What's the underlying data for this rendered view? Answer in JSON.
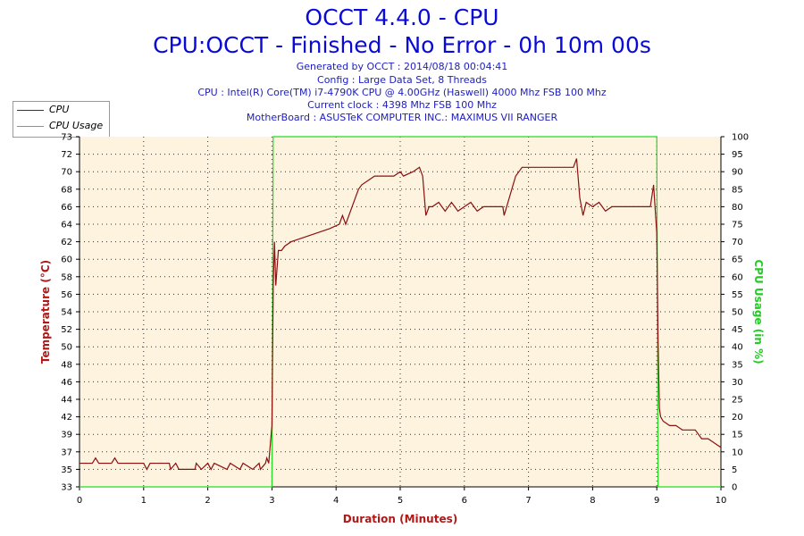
{
  "header": {
    "title": "OCCT 4.4.0 - CPU",
    "subtitle": "CPU:OCCT - Finished - No Error - 0h 10m 00s",
    "info_lines": [
      "Generated by OCCT : 2014/08/18 00:04:41",
      "Config : Large Data Set, 8 Threads",
      "CPU : Intel(R) Core(TM) i7-4790K CPU @ 4.00GHz (Haswell) 4000 Mhz FSB 100 Mhz",
      "Current clock : 4398 Mhz FSB 100 Mhz",
      "MotherBoard : ASUSTeK COMPUTER INC.: MAXIMUS VII RANGER"
    ]
  },
  "colors": {
    "cpu": "#8b1010",
    "usage": "#22dd22",
    "plot_bg": "#fdf3df",
    "title": "#0a0ad8",
    "info": "#2020c0",
    "ylabel_left": "#b01818",
    "ylabel_right": "#22cc22",
    "xlabel": "#b01818"
  },
  "chart_data": {
    "type": "line",
    "title": "OCCT 4.4.0 - CPU",
    "xlabel": "Duration (Minutes)",
    "ylabel": "Temperature (°C)",
    "y2label": "CPU Usage (in %)",
    "xlim": [
      0,
      10
    ],
    "ylim": [
      33,
      73
    ],
    "y2lim": [
      0,
      100
    ],
    "x_ticks": [
      "0",
      "1",
      "2",
      "3",
      "4",
      "5",
      "6",
      "7",
      "8",
      "9",
      "10"
    ],
    "y_ticks": [
      "33",
      "35",
      "37",
      "39",
      "42",
      "44",
      "46",
      "48",
      "50",
      "52",
      "54",
      "56",
      "58",
      "60",
      "62",
      "64",
      "66",
      "68",
      "70",
      "72",
      "73"
    ],
    "y2_ticks": [
      "0",
      "5",
      "10",
      "15",
      "20",
      "25",
      "30",
      "35",
      "40",
      "45",
      "50",
      "55",
      "60",
      "65",
      "70",
      "75",
      "80",
      "85",
      "90",
      "95",
      "100"
    ],
    "grid": true,
    "legend": "top-left",
    "series": [
      {
        "name": "CPU",
        "axis": "left",
        "x": [
          0,
          0.2,
          0.25,
          0.3,
          0.5,
          0.55,
          0.6,
          1.0,
          1.05,
          1.1,
          1.2,
          1.4,
          1.42,
          1.5,
          1.55,
          1.6,
          1.8,
          1.82,
          1.9,
          2.0,
          2.05,
          2.1,
          2.3,
          2.35,
          2.5,
          2.55,
          2.7,
          2.8,
          2.82,
          2.9,
          2.92,
          2.95,
          3.0,
          3.02,
          3.04,
          3.06,
          3.08,
          3.1,
          3.15,
          3.2,
          3.3,
          3.5,
          3.7,
          3.9,
          4.05,
          4.1,
          4.15,
          4.3,
          4.35,
          4.4,
          4.5,
          4.6,
          4.8,
          4.9,
          5.0,
          5.05,
          5.2,
          5.3,
          5.35,
          5.4,
          5.45,
          5.5,
          5.6,
          5.7,
          5.8,
          5.9,
          6.0,
          6.1,
          6.2,
          6.3,
          6.5,
          6.6,
          6.62,
          6.7,
          6.8,
          6.9,
          7.0,
          7.2,
          7.4,
          7.5,
          7.6,
          7.7,
          7.75,
          7.8,
          7.85,
          7.9,
          8.0,
          8.1,
          8.2,
          8.3,
          8.5,
          8.7,
          8.9,
          8.95,
          9.0,
          9.02,
          9.04,
          9.06,
          9.1,
          9.2,
          9.3,
          9.4,
          9.5,
          9.6,
          9.7,
          9.8,
          9.9,
          10.0
        ],
        "values": [
          35.7,
          35.7,
          36.3,
          35.7,
          35.7,
          36.3,
          35.7,
          35.7,
          35.0,
          35.7,
          35.7,
          35.7,
          35.0,
          35.7,
          35.0,
          35.0,
          35.0,
          35.7,
          35.0,
          35.7,
          35.0,
          35.7,
          35.0,
          35.7,
          35.0,
          35.7,
          35.0,
          35.7,
          35.0,
          35.7,
          36.3,
          35.7,
          40.0,
          56.0,
          61.0,
          56.0,
          58.0,
          60.0,
          60.0,
          60.5,
          61.0,
          61.5,
          62.0,
          62.5,
          63.0,
          64.0,
          63.0,
          66.0,
          67.0,
          67.5,
          68.0,
          68.5,
          68.5,
          68.5,
          69.0,
          68.5,
          69.0,
          69.5,
          68.5,
          64.0,
          65.0,
          65.0,
          65.5,
          64.5,
          65.5,
          64.5,
          65.0,
          65.5,
          64.5,
          65.0,
          65.0,
          65.0,
          64.0,
          66.0,
          68.5,
          69.5,
          69.5,
          69.5,
          69.5,
          69.5,
          69.5,
          69.5,
          70.5,
          66.0,
          64.0,
          65.5,
          65.0,
          65.5,
          64.5,
          65.0,
          65.0,
          65.0,
          65.0,
          67.5,
          62.0,
          50.0,
          42.0,
          41.0,
          40.5,
          40.0,
          40.0,
          39.5,
          39.5,
          39.5,
          38.5,
          38.5,
          38.0,
          37.5
        ]
      },
      {
        "name": "CPU Usage",
        "axis": "right",
        "x": [
          0,
          2.98,
          3.0,
          3.02,
          8.98,
          9.0,
          9.02,
          10.0
        ],
        "values": [
          0,
          0,
          0,
          100,
          100,
          100,
          0,
          0
        ]
      }
    ]
  }
}
